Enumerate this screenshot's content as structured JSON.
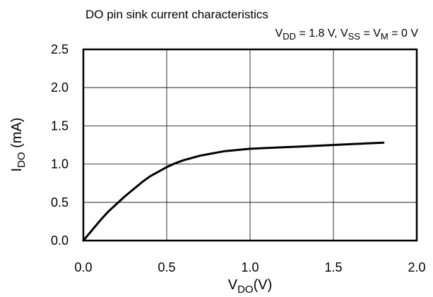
{
  "chart_data": {
    "type": "line",
    "title": "DO pin sink current characteristics",
    "conditions": {
      "vdd_main": "V",
      "vdd_sub": "DD",
      "vdd_val": " = 1.8 V, ",
      "vss_main": "V",
      "vss_sub": "SS",
      "eq": " = ",
      "vm_main": "V",
      "vm_sub": "M",
      "vm_val": " = 0 V"
    },
    "xlabel": {
      "main": "V",
      "sub": "DO",
      "unit": "(V)"
    },
    "ylabel": {
      "main": "I",
      "sub": "DO",
      "unit": " (mA)"
    },
    "xlim": [
      0,
      2.0
    ],
    "ylim": [
      0,
      2.5
    ],
    "xticks": [
      "0.0",
      "0.5",
      "1.0",
      "1.5",
      "2.0"
    ],
    "yticks": [
      "0.0",
      "0.5",
      "1.0",
      "1.5",
      "2.0",
      "2.5"
    ],
    "grid": true,
    "series": [
      {
        "color": "#000000",
        "x": [
          0.0,
          0.05,
          0.1,
          0.15,
          0.2,
          0.25,
          0.3,
          0.35,
          0.4,
          0.45,
          0.5,
          0.55,
          0.6,
          0.65,
          0.7,
          0.75,
          0.8,
          0.85,
          0.9,
          0.95,
          1.0,
          1.1,
          1.2,
          1.3,
          1.4,
          1.5,
          1.6,
          1.7,
          1.8
        ],
        "y": [
          0.0,
          0.13,
          0.26,
          0.38,
          0.48,
          0.58,
          0.67,
          0.76,
          0.84,
          0.9,
          0.96,
          1.01,
          1.05,
          1.08,
          1.11,
          1.13,
          1.15,
          1.17,
          1.18,
          1.19,
          1.2,
          1.21,
          1.22,
          1.23,
          1.24,
          1.25,
          1.26,
          1.27,
          1.28
        ]
      }
    ]
  }
}
